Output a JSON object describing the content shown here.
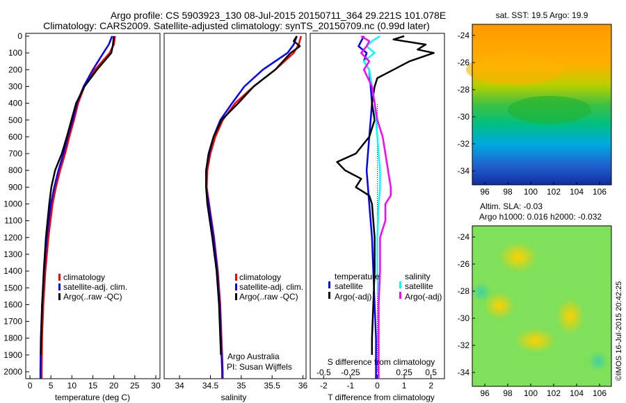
{
  "header": {
    "title_line1": "Argo profile: CS 5903923_130 08-Jul-2015 20150711_364 29.221S 101.078E",
    "title_line2": "Climatology: CARS2009. Satellite-adjusted climatology: synTS_20150709.nc (0.99d later)"
  },
  "colors": {
    "climatology": "#ff0000",
    "satellite": "#0000ff",
    "argo": "#000000",
    "salinity_sat": "#00ffff",
    "salinity_argo": "#ff00ff"
  },
  "chart_data": [
    {
      "type": "line",
      "xlabel": "temperature (deg C)",
      "xticks": [
        0,
        5,
        10,
        15,
        20,
        25,
        30
      ],
      "xlim": [
        -1,
        31
      ],
      "ylim": [
        2050,
        0
      ],
      "yticks": [
        0,
        100,
        200,
        300,
        400,
        500,
        600,
        700,
        800,
        900,
        1000,
        1100,
        1200,
        1300,
        1400,
        1500,
        1600,
        1700,
        1800,
        1900,
        2000
      ],
      "legend": [
        "climatology",
        "satellite-adj. clim.",
        "Argo(..raw -QC)"
      ],
      "series": [
        {
          "name": "climatology",
          "color": "#ff0000",
          "y": [
            0,
            50,
            100,
            200,
            300,
            400,
            500,
            600,
            700,
            800,
            900,
            1000,
            1200,
            1400,
            1600,
            1800,
            2000,
            2040
          ],
          "x": [
            20.3,
            20.0,
            19.0,
            15.5,
            13.0,
            11.5,
            10.5,
            9.4,
            8.4,
            7.2,
            6.2,
            5.4,
            4.4,
            3.7,
            3.2,
            2.9,
            2.8,
            2.8
          ]
        },
        {
          "name": "satellite-adj. clim.",
          "color": "#0000ff",
          "y": [
            0,
            50,
            100,
            200,
            300,
            400,
            500,
            600,
            700,
            800,
            900,
            1000,
            1200,
            1400,
            1600,
            1800,
            2000,
            2040
          ],
          "x": [
            19.6,
            18.8,
            17.5,
            15.0,
            12.8,
            11.2,
            10.2,
            9.0,
            8.0,
            6.8,
            5.8,
            5.0,
            4.0,
            3.4,
            2.9,
            2.6,
            2.5,
            2.5
          ]
        },
        {
          "name": "Argo(..raw -QC)",
          "color": "#000000",
          "y": [
            0,
            50,
            100,
            200,
            300,
            400,
            500,
            600,
            700,
            800,
            900,
            1000,
            1200,
            1400,
            1600,
            1800,
            1900
          ],
          "x": [
            20.0,
            19.8,
            19.4,
            16.0,
            13.0,
            11.0,
            9.9,
            8.8,
            7.6,
            6.0,
            5.1,
            4.6,
            3.8,
            3.3,
            2.9,
            2.7,
            2.6
          ]
        }
      ]
    },
    {
      "type": "line",
      "xlabel": "salinity",
      "xticks": [
        34,
        34.5,
        35,
        35.5,
        36
      ],
      "xlim": [
        33.75,
        36.05
      ],
      "ylim": [
        2050,
        0
      ],
      "legend": [
        "climatology",
        "satellite-adj. clim.",
        "Argo(..raw -QC)"
      ],
      "annotations": [
        "Argo Australia",
        "PI: Susan Wijffels"
      ],
      "series": [
        {
          "name": "climatology",
          "color": "#ff0000",
          "y": [
            0,
            50,
            100,
            200,
            300,
            400,
            500,
            600,
            700,
            800,
            900,
            1000,
            1200,
            1400,
            1600,
            1800,
            2000,
            2040
          ],
          "x": [
            35.97,
            35.93,
            35.85,
            35.55,
            35.2,
            34.9,
            34.7,
            34.58,
            34.5,
            34.45,
            34.44,
            34.48,
            34.56,
            34.62,
            34.66,
            34.68,
            34.7,
            34.7
          ]
        },
        {
          "name": "satellite-adj. clim.",
          "color": "#0000ff",
          "y": [
            0,
            50,
            100,
            200,
            300,
            400,
            500,
            600,
            700,
            800,
            900,
            1000,
            1200,
            1400,
            1600,
            1800,
            2000,
            2040
          ],
          "x": [
            35.9,
            35.85,
            35.75,
            35.35,
            35.05,
            34.85,
            34.66,
            34.55,
            34.48,
            34.43,
            34.43,
            34.47,
            34.55,
            34.61,
            34.65,
            34.67,
            34.69,
            34.69
          ]
        },
        {
          "name": "Argo(..raw -QC)",
          "color": "#000000",
          "y": [
            0,
            30,
            60,
            100,
            200,
            300,
            400,
            500,
            600,
            700,
            800,
            900,
            1000,
            1200,
            1400,
            1600,
            1800,
            1900
          ],
          "x": [
            35.9,
            35.85,
            35.95,
            35.8,
            35.55,
            35.2,
            34.95,
            34.68,
            34.55,
            34.47,
            34.43,
            34.43,
            34.45,
            34.53,
            34.6,
            34.64,
            34.66,
            34.67
          ]
        }
      ]
    },
    {
      "type": "line",
      "xlabel": "T difference from climatology",
      "xlabel_top": "S difference from climatology",
      "xticks_T": [
        -2,
        -1,
        0,
        1,
        2
      ],
      "xticks_S": [
        "-0.5",
        "-0.25",
        "0",
        "0.25",
        "0.5"
      ],
      "xlim": [
        -2.5,
        2.5
      ],
      "ylim": [
        2050,
        0
      ],
      "legend_T": {
        "heading": "temperature",
        "items": [
          "satellite",
          "Argo(-adj)"
        ]
      },
      "legend_S": {
        "heading": "salinity",
        "items": [
          "satellite",
          "Argo(-adj)"
        ]
      },
      "series": [
        {
          "name": "satellite",
          "color": "#0000ff",
          "y": [
            0,
            30,
            60,
            100,
            150,
            200,
            300,
            400,
            500,
            600,
            700,
            800,
            900,
            1000,
            1200,
            1400,
            1600,
            1800,
            2000,
            2040
          ],
          "x": [
            -0.5,
            -0.6,
            -0.7,
            -0.4,
            -0.5,
            -0.3,
            -0.25,
            -0.2,
            -0.25,
            -0.3,
            -0.35,
            -0.4,
            -0.35,
            -0.3,
            -0.2,
            -0.15,
            -0.1,
            -0.05,
            -0.05,
            -0.05
          ]
        },
        {
          "name": "Argo(-adj)",
          "color": "#000000",
          "y": [
            0,
            20,
            50,
            80,
            100,
            150,
            200,
            250,
            300,
            400,
            500,
            600,
            700,
            750,
            800,
            850,
            900,
            950,
            1000,
            1200,
            1400,
            1600,
            1800,
            1900
          ],
          "x": [
            1.0,
            0.6,
            1.8,
            1.5,
            2.1,
            1.2,
            0.6,
            0.0,
            -0.1,
            -0.2,
            -0.1,
            -0.3,
            -0.8,
            -1.5,
            -1.2,
            -0.6,
            -0.8,
            -0.3,
            -0.2,
            -0.1,
            -0.1,
            -0.15,
            -0.2,
            -0.2
          ]
        },
        {
          "name": "salinity satellite",
          "color": "#00ffff",
          "y": [
            0,
            30,
            60,
            100,
            150,
            200,
            300,
            400,
            500,
            600,
            700,
            800,
            900,
            1000,
            1200,
            1400,
            1600,
            1800,
            2000,
            2040
          ],
          "x": [
            0.1,
            -0.2,
            -0.4,
            -0.1,
            -0.5,
            -0.3,
            -0.2,
            -0.1,
            -0.05,
            0.0,
            0.05,
            0.1,
            0.1,
            0.05,
            0.0,
            0.0,
            0.05,
            0.05,
            0.05,
            0.05
          ]
        },
        {
          "name": "salinity Argo(-adj)",
          "color": "#ff00ff",
          "y": [
            0,
            30,
            60,
            100,
            150,
            200,
            300,
            400,
            500,
            600,
            700,
            800,
            900,
            950,
            1000,
            1100,
            1200,
            1400,
            1600,
            1800,
            2000,
            2040
          ],
          "x": [
            -0.6,
            -0.3,
            -0.4,
            -0.6,
            -0.3,
            -0.5,
            -0.2,
            -0.1,
            0.0,
            0.2,
            0.3,
            0.4,
            0.5,
            0.5,
            0.3,
            0.3,
            0.1,
            0.1,
            0.05,
            0.05,
            0.05,
            0.05
          ]
        }
      ]
    }
  ],
  "maps": {
    "sst": {
      "title": "sat. SST: 19.5 Argo: 19.9",
      "xticks": [
        "96",
        "98",
        "100",
        "102",
        "104",
        "106"
      ],
      "yticks": [
        "-24",
        "-26",
        "-28",
        "-30",
        "-32",
        "-34"
      ]
    },
    "sla": {
      "title_line1": "Altim. SLA: -0.03",
      "title_line2": "Argo h1000: 0.016 h2000: -0.032",
      "xticks": [
        "96",
        "98",
        "100",
        "102",
        "104",
        "106"
      ],
      "yticks": [
        "-24",
        "-26",
        "-28",
        "-30",
        "-32",
        "-34"
      ]
    }
  },
  "footer": {
    "stamp": "©IMOS 16-Jul-2015 20:42:25"
  }
}
